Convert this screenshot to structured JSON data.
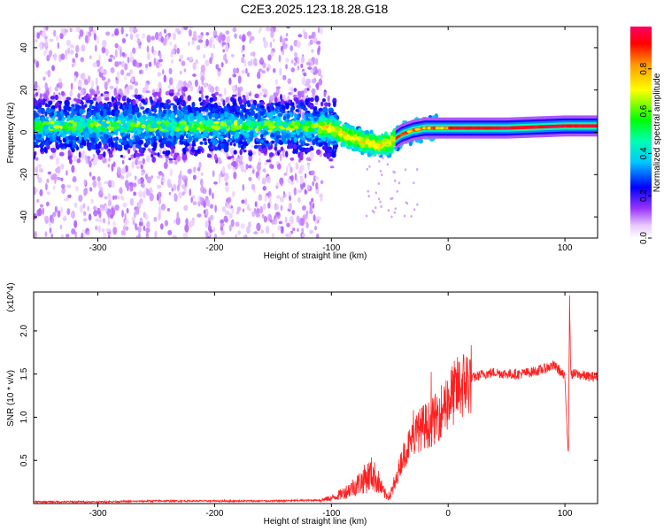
{
  "page": {
    "title": "C2E3.2025.123.18.28.G18"
  },
  "chart_data": [
    {
      "type": "heatmap",
      "xlabel": "Height of straight line (km)",
      "ylabel": "Frequency (Hz)",
      "xlim": [
        -355,
        128
      ],
      "ylim": [
        -50,
        50
      ],
      "x_ticks": [
        -300,
        -200,
        -100,
        0,
        100
      ],
      "y_ticks": [
        -40,
        -20,
        0,
        20,
        40
      ],
      "colorbar": {
        "label": "Normalized spectral amplitude",
        "range": [
          0,
          1
        ],
        "ticks": [
          0.0,
          0.2,
          0.4,
          0.6,
          0.8
        ],
        "colormap": "rainbow (white→purple→blue→cyan→green→yellow→red→magenta)"
      },
      "description_series": [
        {
          "name": "centerline",
          "x": [
            -355,
            -300,
            -200,
            -120,
            -100,
            -90,
            -80,
            -70,
            -60,
            -50,
            -45,
            -40,
            -30,
            -20,
            -10,
            0,
            50,
            100,
            128
          ],
          "y": [
            3,
            3,
            3,
            3,
            2,
            -1,
            -3,
            -5,
            -6,
            -5,
            -3,
            -1,
            1,
            2,
            2,
            2,
            2,
            3,
            3
          ]
        }
      ]
    },
    {
      "type": "line",
      "xlabel": "Height of straight line (km)",
      "ylabel": "SNR (10 * v/v)",
      "y_multiplier": "(x10^4)",
      "xlim": [
        -355,
        128
      ],
      "ylim": [
        0,
        2.45
      ],
      "x_ticks": [
        -300,
        -200,
        -100,
        0,
        100
      ],
      "y_ticks": [
        0.5,
        1.0,
        1.5,
        2.0
      ],
      "color": "#ff2020",
      "series": [
        {
          "x": [
            -355,
            -300,
            -250,
            -200,
            -150,
            -110,
            -100,
            -90,
            -80,
            -70,
            -65,
            -60,
            -55,
            -50,
            -45,
            -40,
            -35,
            -30,
            -25,
            -20,
            -15,
            -10,
            -5,
            0,
            10,
            20,
            30,
            40,
            50,
            60,
            70,
            80,
            90,
            95,
            100,
            103,
            104,
            105,
            110,
            120,
            128
          ],
          "y": [
            0.02,
            0.02,
            0.03,
            0.03,
            0.03,
            0.04,
            0.06,
            0.12,
            0.2,
            0.3,
            0.35,
            0.25,
            0.12,
            0.08,
            0.25,
            0.5,
            0.65,
            0.75,
            0.85,
            0.9,
            0.92,
            1.0,
            1.1,
            1.2,
            1.35,
            1.45,
            1.5,
            1.52,
            1.5,
            1.5,
            1.52,
            1.55,
            1.6,
            1.55,
            1.45,
            0.55,
            2.4,
            1.5,
            1.5,
            1.47,
            1.47
          ]
        }
      ]
    }
  ]
}
